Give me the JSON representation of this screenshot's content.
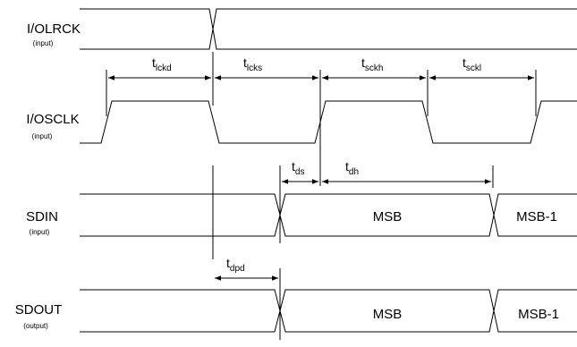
{
  "signals": [
    {
      "name": "I/OLRCK",
      "direction": "(input)"
    },
    {
      "name": "I/OSCLK",
      "direction": "(input)"
    },
    {
      "name": "SDIN",
      "direction": "(input)"
    },
    {
      "name": "SDOUT",
      "direction": "(output)"
    }
  ],
  "timings": {
    "lckd": {
      "main": "t",
      "sub": "lckd"
    },
    "lcks": {
      "main": "t",
      "sub": "lcks"
    },
    "sckh": {
      "main": "t",
      "sub": "sckh"
    },
    "sckl": {
      "main": "t",
      "sub": "sckl"
    },
    "ds": {
      "main": "t",
      "sub": "ds"
    },
    "dh": {
      "main": "t",
      "sub": "dh"
    },
    "dpd": {
      "main": "t",
      "sub": "dpd"
    }
  },
  "fields": {
    "sdin_msb": "MSB",
    "sdin_msb1": "MSB-1",
    "sdout_msb": "MSB",
    "sdout_msb1": "MSB-1"
  }
}
